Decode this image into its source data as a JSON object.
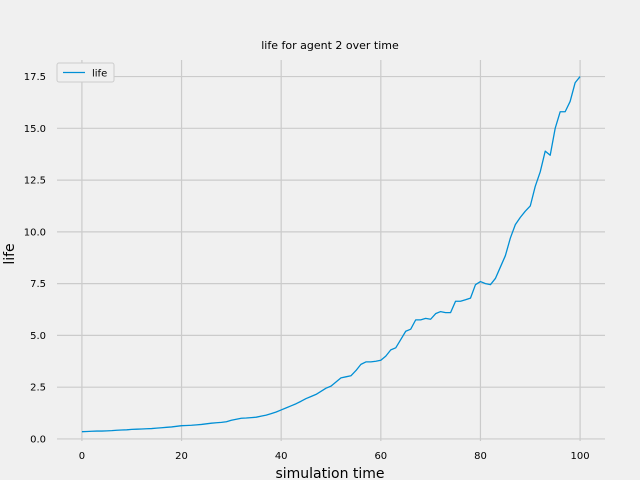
{
  "chart_data": {
    "type": "line",
    "title": "life for agent 2 over time",
    "xlabel": "simulation time",
    "ylabel": "life",
    "xlim": [
      -5,
      105
    ],
    "ylim": [
      -0.1,
      18.3
    ],
    "xticks": [
      0,
      20,
      40,
      60,
      80,
      100
    ],
    "yticks": [
      0.0,
      2.5,
      5.0,
      7.5,
      10.0,
      12.5,
      15.0,
      17.5
    ],
    "x_tick_labels": [
      "0",
      "20",
      "40",
      "60",
      "80",
      "100"
    ],
    "y_tick_labels": [
      "0.0",
      "2.5",
      "5.0",
      "7.5",
      "10.0",
      "12.5",
      "15.0",
      "17.5"
    ],
    "grid": true,
    "legend": {
      "position": "top-left"
    },
    "colors": {
      "background": "#f0f0f0",
      "grid": "#cbcbcb",
      "line": "#008fd5",
      "text": "#000000"
    },
    "series": [
      {
        "name": "life",
        "x": [
          0,
          1,
          2,
          3,
          4,
          5,
          6,
          7,
          8,
          9,
          10,
          11,
          12,
          13,
          14,
          15,
          16,
          17,
          18,
          19,
          20,
          21,
          22,
          23,
          24,
          25,
          26,
          27,
          28,
          29,
          30,
          31,
          32,
          33,
          34,
          35,
          36,
          37,
          38,
          39,
          40,
          41,
          42,
          43,
          44,
          45,
          46,
          47,
          48,
          49,
          50,
          51,
          52,
          53,
          54,
          55,
          56,
          57,
          58,
          59,
          60,
          61,
          62,
          63,
          64,
          65,
          66,
          67,
          68,
          69,
          70,
          71,
          72,
          73,
          74,
          75,
          76,
          77,
          78,
          79,
          80,
          81,
          82,
          83,
          84,
          85,
          86,
          87,
          88,
          89,
          90,
          91,
          92,
          93,
          94,
          95,
          96,
          97,
          98,
          99,
          100
        ],
        "values": [
          0.35,
          0.36,
          0.37,
          0.38,
          0.38,
          0.39,
          0.4,
          0.42,
          0.43,
          0.44,
          0.46,
          0.47,
          0.48,
          0.49,
          0.5,
          0.52,
          0.54,
          0.56,
          0.58,
          0.61,
          0.64,
          0.65,
          0.66,
          0.68,
          0.7,
          0.73,
          0.76,
          0.78,
          0.8,
          0.83,
          0.9,
          0.95,
          1.0,
          1.01,
          1.03,
          1.05,
          1.1,
          1.15,
          1.22,
          1.3,
          1.4,
          1.5,
          1.6,
          1.7,
          1.82,
          1.95,
          2.05,
          2.15,
          2.3,
          2.45,
          2.55,
          2.75,
          2.95,
          3.0,
          3.05,
          3.3,
          3.6,
          3.72,
          3.72,
          3.75,
          3.8,
          4.0,
          4.3,
          4.4,
          4.8,
          5.2,
          5.3,
          5.75,
          5.75,
          5.82,
          5.78,
          6.05,
          6.15,
          6.1,
          6.1,
          6.65,
          6.65,
          6.72,
          6.8,
          7.45,
          7.6,
          7.5,
          7.45,
          7.75,
          8.3,
          8.85,
          9.7,
          10.35,
          10.7,
          11.0,
          11.25,
          12.2,
          12.9,
          13.9,
          13.7,
          15.0,
          15.8,
          15.8,
          16.3,
          17.2,
          17.5
        ]
      }
    ]
  }
}
